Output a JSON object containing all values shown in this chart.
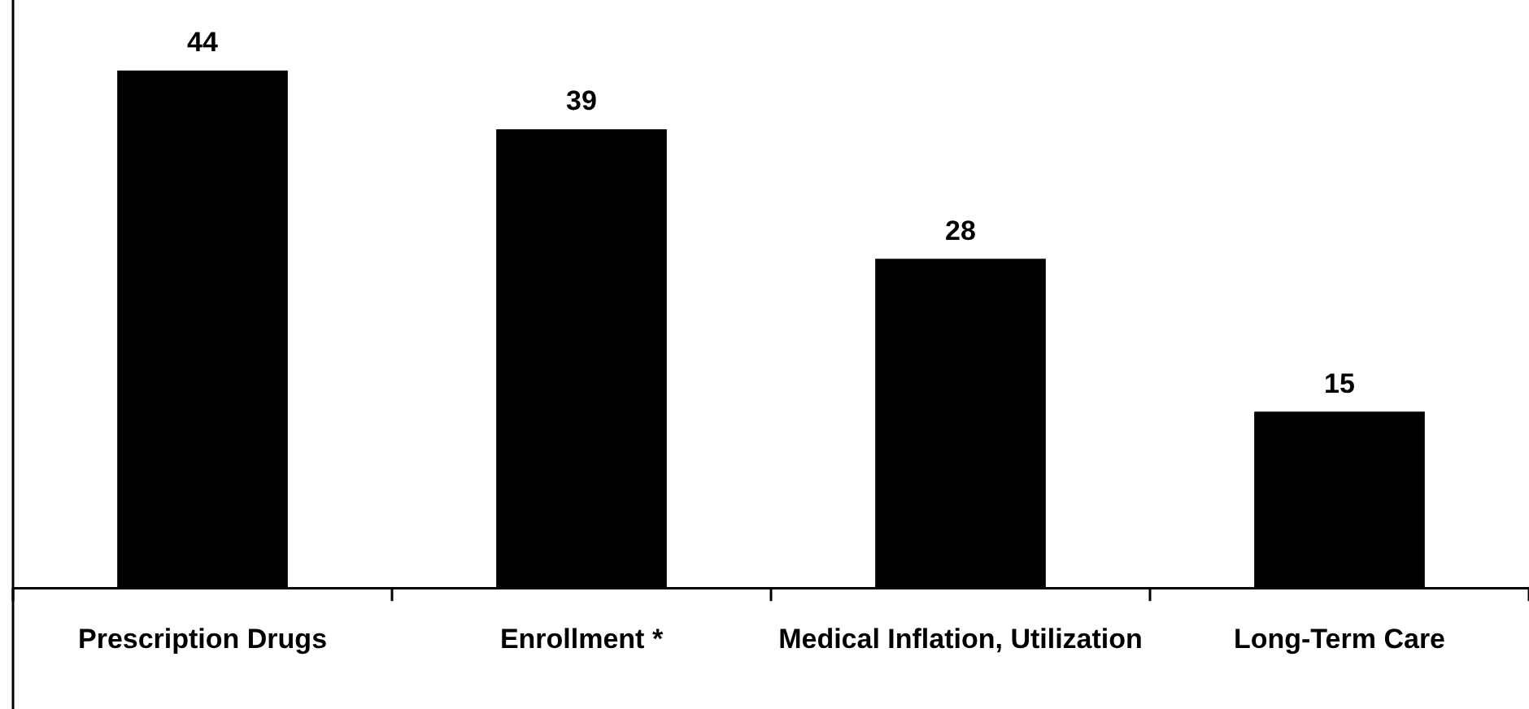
{
  "chart_data": {
    "type": "bar",
    "categories": [
      "Prescription Drugs",
      "Enrollment *",
      "Medical Inflation, Utilization",
      "Long-Term Care"
    ],
    "values": [
      44,
      39,
      28,
      15
    ],
    "color": "#000000",
    "ylim": [
      0,
      50
    ],
    "data_labels": true,
    "grid": false,
    "legend": false
  }
}
